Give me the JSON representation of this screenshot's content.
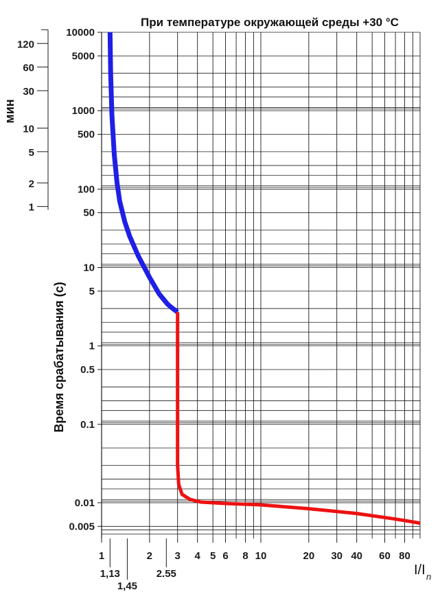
{
  "chart_data": {
    "type": "line",
    "title": "При температуре окружающей среды +30 °C",
    "ylabel": "Время срабатывания (с)",
    "xlabel": "I/I",
    "xlabel_sub": "n",
    "xscale": "log",
    "yscale": "log",
    "xlim": [
      1,
      100
    ],
    "ylim": [
      0.0035,
      10000
    ],
    "grid": true,
    "y_ticks": [
      {
        "value": 10000,
        "label": "10000"
      },
      {
        "value": 5000,
        "label": "5000"
      },
      {
        "value": 1000,
        "label": "1000"
      },
      {
        "value": 500,
        "label": "500"
      },
      {
        "value": 100,
        "label": "100"
      },
      {
        "value": 50,
        "label": "50"
      },
      {
        "value": 10,
        "label": "10"
      },
      {
        "value": 5,
        "label": "5"
      },
      {
        "value": 1,
        "label": "1"
      },
      {
        "value": 0.5,
        "label": "0.5"
      },
      {
        "value": 0.1,
        "label": "0.1"
      },
      {
        "value": 0.01,
        "label": "0.01"
      },
      {
        "value": 0.005,
        "label": "0.005"
      }
    ],
    "x_ticks": [
      {
        "value": 1,
        "label": "1"
      },
      {
        "value": 2,
        "label": "2"
      },
      {
        "value": 3,
        "label": "3"
      },
      {
        "value": 4,
        "label": "4"
      },
      {
        "value": 5,
        "label": "5"
      },
      {
        "value": 6,
        "label": "6"
      },
      {
        "value": 8,
        "label": "8"
      },
      {
        "value": 10,
        "label": "10"
      },
      {
        "value": 20,
        "label": "20"
      },
      {
        "value": 30,
        "label": "30"
      },
      {
        "value": 40,
        "label": "40"
      },
      {
        "value": 60,
        "label": "60"
      },
      {
        "value": 80,
        "label": "80"
      }
    ],
    "x_ticks_extra": [
      {
        "value": 1.13,
        "label": "1,13",
        "row": 1
      },
      {
        "value": 1.45,
        "label": "1,45",
        "row": 2
      },
      {
        "value": 2.55,
        "label": "2.55",
        "row": 1
      }
    ],
    "min_axis": {
      "label": "мин",
      "ticks": [
        {
          "minutes": 120,
          "label": "120"
        },
        {
          "minutes": 60,
          "label": "60"
        },
        {
          "minutes": 30,
          "label": "30"
        },
        {
          "minutes": 10,
          "label": "10"
        },
        {
          "minutes": 5,
          "label": "5"
        },
        {
          "minutes": 2,
          "label": "2"
        },
        {
          "minutes": 1,
          "label": "1"
        }
      ]
    },
    "series": [
      {
        "color": "#1f1fe6",
        "x": [
          1.13,
          1.14,
          1.16,
          1.2,
          1.25,
          1.3,
          1.4,
          1.5,
          1.7,
          2.0,
          2.3,
          2.6,
          2.8,
          3.0
        ],
        "y": [
          10000,
          3000,
          900,
          280,
          120,
          70,
          38,
          25,
          14,
          7.5,
          4.6,
          3.4,
          3.0,
          2.7
        ]
      },
      {
        "color": "#ee1111",
        "x": [
          3.0,
          3.0,
          3.0,
          3.05,
          3.2,
          3.6,
          4.2,
          6.0,
          10,
          20,
          40,
          70,
          100
        ],
        "y": [
          2.7,
          0.5,
          0.03,
          0.017,
          0.0128,
          0.011,
          0.0102,
          0.0098,
          0.0094,
          0.0084,
          0.0073,
          0.0062,
          0.0055
        ]
      }
    ]
  }
}
